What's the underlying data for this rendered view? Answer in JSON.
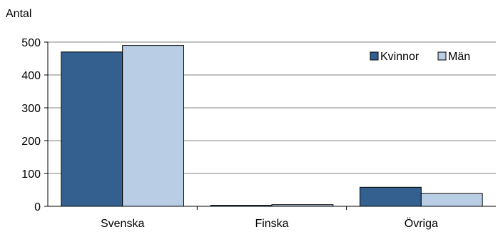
{
  "chart_data": {
    "type": "bar",
    "ylabel": "Antal",
    "categories": [
      "Svenska",
      "Finska",
      "Övriga"
    ],
    "series": [
      {
        "name": "Kvinnor",
        "values": [
          470,
          3,
          58
        ]
      },
      {
        "name": "Män",
        "values": [
          490,
          5,
          39
        ]
      }
    ],
    "ylim": [
      0,
      500
    ],
    "yticks": [
      0,
      100,
      200,
      300,
      400,
      500
    ],
    "grid": true,
    "legend_position": "top-right",
    "colors": [
      "#34608f",
      "#b9cde5"
    ],
    "edge_color": "#000000"
  }
}
